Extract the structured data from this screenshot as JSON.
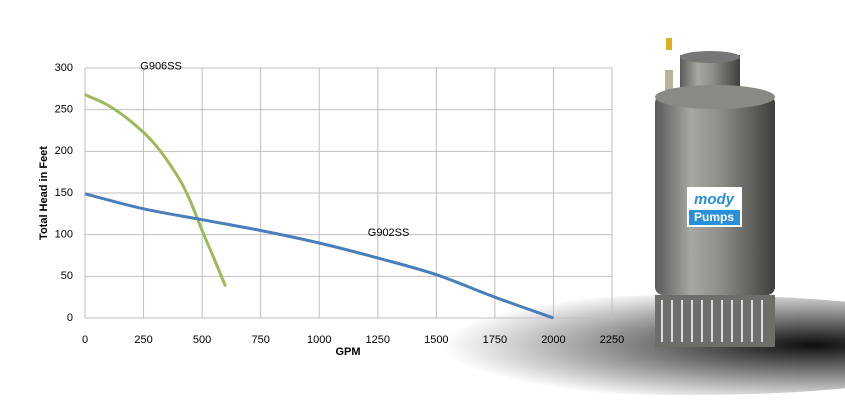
{
  "chart_data": {
    "type": "line",
    "x_label": "GPM",
    "y_label": "Total Head in Feet",
    "xlim": [
      0,
      2250
    ],
    "xticks": [
      0,
      250,
      500,
      750,
      1000,
      1250,
      1500,
      1750,
      2000,
      2250
    ],
    "ylim": [
      0,
      300
    ],
    "yticks": [
      0,
      50,
      100,
      150,
      200,
      250,
      300
    ],
    "grid": true,
    "series": [
      {
        "name": "G906SS",
        "color": "#9bbb59",
        "x": [
          0,
          100,
          200,
          300,
          400,
          450,
          500,
          550,
          600
        ],
        "values": [
          268,
          255,
          235,
          208,
          168,
          140,
          105,
          72,
          38
        ]
      },
      {
        "name": "G902SS",
        "color": "#4a7ebb",
        "x": [
          0,
          250,
          500,
          750,
          1000,
          1250,
          1500,
          1750,
          2000
        ],
        "values": [
          149,
          131,
          118,
          105,
          90,
          72,
          52,
          25,
          0
        ]
      }
    ]
  },
  "photo": {
    "logo_top": "mody",
    "logo_bottom": "Pumps"
  }
}
